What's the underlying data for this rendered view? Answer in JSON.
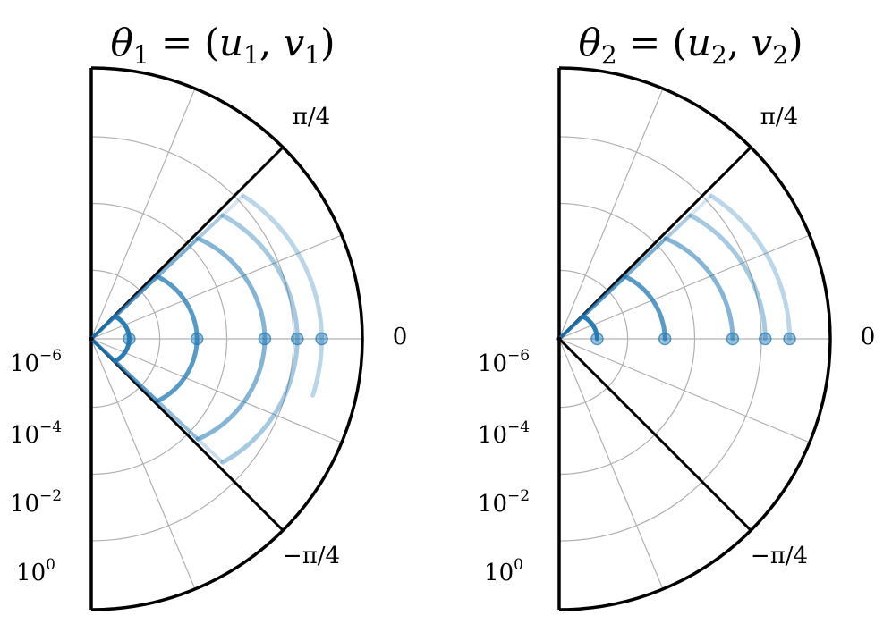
{
  "chart_data": [
    {
      "type": "polar-line",
      "title": {
        "base": "θ",
        "sub": "1",
        "rest": " = (",
        "u": "u",
        "usub": "1",
        "sep": ", ",
        "v": "v",
        "vsub": "1",
        "close": ")"
      },
      "theta_range": [
        "-π/2",
        "π/2"
      ],
      "theta_ticks": [
        {
          "label": "π/4",
          "value": 0.7854
        },
        {
          "label": "0",
          "value": 0
        },
        {
          "label": "−π/4",
          "value": -0.7854
        }
      ],
      "r_scale": "log",
      "r_ticks": [
        {
          "base": "10",
          "exp": "−6"
        },
        {
          "base": "10",
          "exp": "−4"
        },
        {
          "base": "10",
          "exp": "−2"
        },
        {
          "base": "10",
          "exp": "0"
        }
      ],
      "wedge": "both",
      "grid": true,
      "series": [
        {
          "r0": 0.14,
          "amp": 0.02,
          "alpha": 0.95,
          "sym": true
        },
        {
          "r0": 0.39,
          "amp": 0.055,
          "alpha": 0.75,
          "sym": true
        },
        {
          "r0": 0.64,
          "amp": 0.1,
          "alpha": 0.55,
          "sym": true
        },
        {
          "r0": 0.76,
          "amp": 0.095,
          "alpha": 0.4,
          "sym": true
        },
        {
          "r0": 0.85,
          "amp": 0.08,
          "alpha": 0.3,
          "sym": false
        }
      ]
    },
    {
      "type": "polar-line",
      "title": {
        "base": "θ",
        "sub": "2",
        "rest": " = (",
        "u": "u",
        "usub": "2",
        "sep": ", ",
        "v": "v",
        "vsub": "2",
        "close": ")"
      },
      "theta_range": [
        "-π/2",
        "π/2"
      ],
      "theta_ticks": [
        {
          "label": "π/4",
          "value": 0.7854
        },
        {
          "label": "0",
          "value": 0
        },
        {
          "label": "−π/4",
          "value": -0.7854
        }
      ],
      "r_scale": "log",
      "r_ticks": [
        {
          "base": "10",
          "exp": "−6"
        },
        {
          "base": "10",
          "exp": "−4"
        },
        {
          "base": "10",
          "exp": "−2"
        },
        {
          "base": "10",
          "exp": "0"
        }
      ],
      "wedge": "upper",
      "grid": true,
      "series": [
        {
          "r0": 0.14,
          "amp": 0.02,
          "alpha": 0.95,
          "sym": false
        },
        {
          "r0": 0.39,
          "amp": 0.055,
          "alpha": 0.75,
          "sym": false
        },
        {
          "r0": 0.64,
          "amp": 0.1,
          "alpha": 0.55,
          "sym": false
        },
        {
          "r0": 0.76,
          "amp": 0.095,
          "alpha": 0.4,
          "sym": false
        },
        {
          "r0": 0.85,
          "amp": 0.08,
          "alpha": 0.3,
          "sym": false
        }
      ]
    }
  ],
  "colors": {
    "line": "#1f77b4",
    "axis": "#000000",
    "grid": "#b0b0b0"
  }
}
